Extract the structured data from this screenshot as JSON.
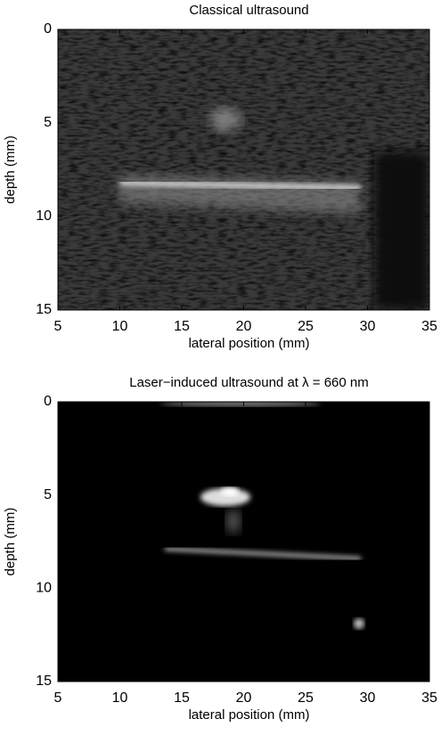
{
  "chart_data": [
    {
      "type": "image",
      "title": "Classical ultrasound",
      "xlabel": "lateral position (mm)",
      "ylabel": "depth (mm)",
      "xlim": [
        5,
        35
      ],
      "ylim": [
        15,
        0
      ],
      "xticks": [
        5,
        10,
        15,
        20,
        25,
        30,
        35
      ],
      "yticks": [
        0,
        5,
        10,
        15
      ]
    },
    {
      "type": "image",
      "title": "Laser−induced ultrasound at  λ = 660 nm",
      "xlabel": "lateral position (mm)",
      "ylabel": "depth (mm)",
      "xlim": [
        5,
        35
      ],
      "ylim": [
        15,
        0
      ],
      "xticks": [
        5,
        10,
        15,
        20,
        25,
        30,
        35
      ],
      "yticks": [
        0,
        5,
        10,
        15
      ]
    }
  ]
}
